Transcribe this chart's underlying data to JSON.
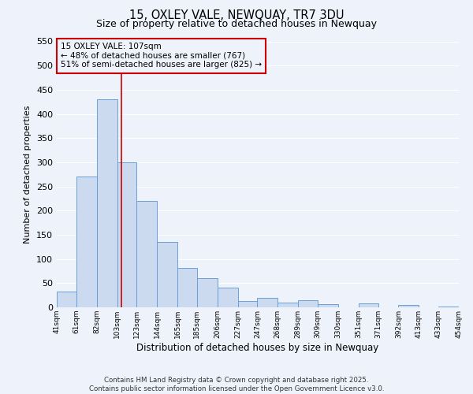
{
  "title": "15, OXLEY VALE, NEWQUAY, TR7 3DU",
  "subtitle": "Size of property relative to detached houses in Newquay",
  "xlabel": "Distribution of detached houses by size in Newquay",
  "ylabel": "Number of detached properties",
  "footer_line1": "Contains HM Land Registry data © Crown copyright and database right 2025.",
  "footer_line2": "Contains public sector information licensed under the Open Government Licence v3.0.",
  "annotation_line1": "15 OXLEY VALE: 107sqm",
  "annotation_line2": "← 48% of detached houses are smaller (767)",
  "annotation_line3": "51% of semi-detached houses are larger (825) →",
  "bar_color": "#ccdaf0",
  "bar_edge_color": "#6a9fd8",
  "background_color": "#eef2fb",
  "grid_color": "#ffffff",
  "vline_x": 107,
  "vline_color": "#cc0000",
  "annotation_box_edge_color": "#cc0000",
  "bin_edges": [
    41,
    61,
    82,
    103,
    123,
    144,
    165,
    185,
    206,
    227,
    247,
    268,
    289,
    309,
    330,
    351,
    371,
    392,
    413,
    433,
    454
  ],
  "counts": [
    33,
    270,
    430,
    300,
    220,
    135,
    82,
    60,
    40,
    13,
    20,
    10,
    14,
    7,
    0,
    8,
    0,
    5,
    0,
    2
  ],
  "ylim": [
    0,
    550
  ],
  "yticks": [
    0,
    50,
    100,
    150,
    200,
    250,
    300,
    350,
    400,
    450,
    500,
    550
  ]
}
